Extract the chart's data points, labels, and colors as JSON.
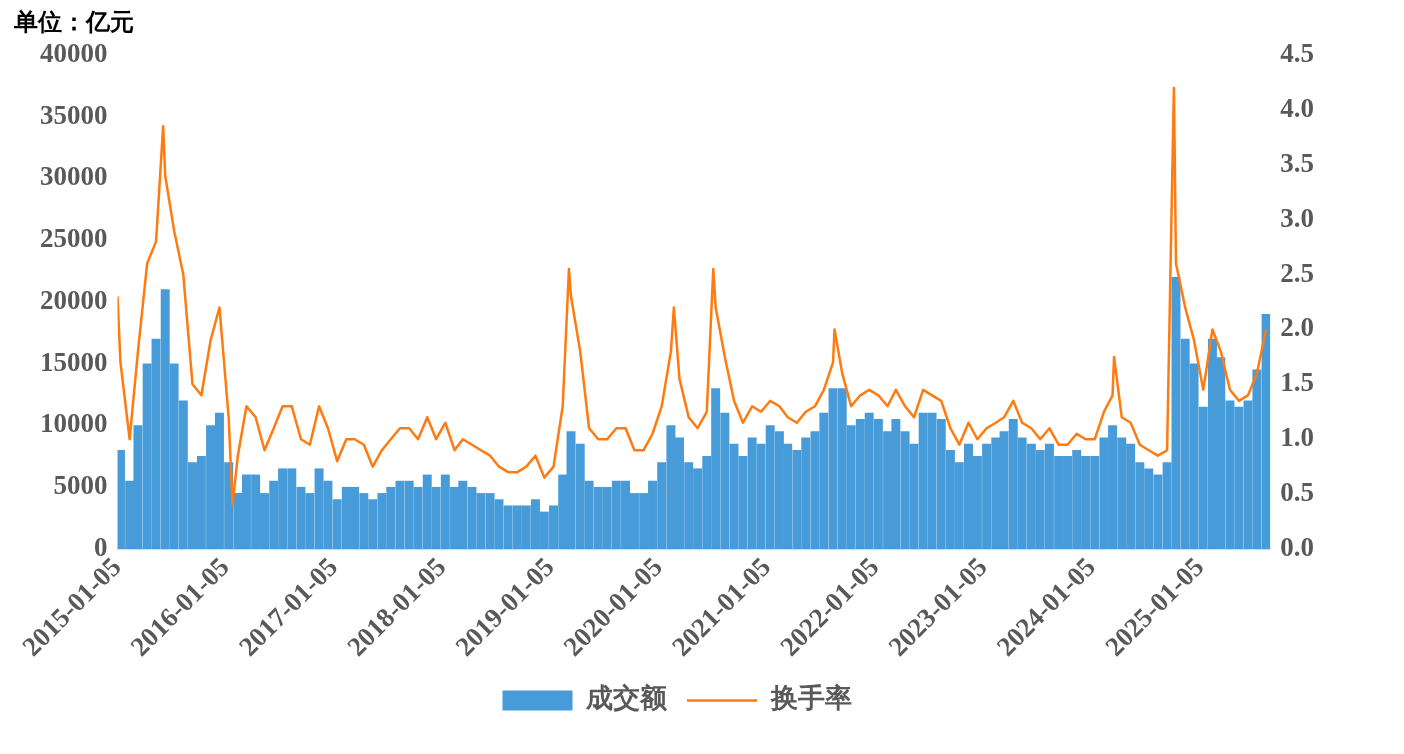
{
  "chart_data": {
    "type": "bar",
    "ylabel": "单位：亿元",
    "x": [
      "2015-01-15",
      "2015-02-15",
      "2015-03-15",
      "2015-04-15",
      "2015-05-15",
      "2015-06-15",
      "2015-07-15",
      "2015-08-15",
      "2015-09-15",
      "2015-10-15",
      "2015-11-15",
      "2015-12-15",
      "2016-01-15",
      "2016-02-15",
      "2016-03-15",
      "2016-04-15",
      "2016-05-15",
      "2016-06-15",
      "2016-07-15",
      "2016-08-15",
      "2016-09-15",
      "2016-10-15",
      "2016-11-15",
      "2016-12-15",
      "2017-01-15",
      "2017-02-15",
      "2017-03-15",
      "2017-04-15",
      "2017-05-15",
      "2017-06-15",
      "2017-07-15",
      "2017-08-15",
      "2017-09-15",
      "2017-10-15",
      "2017-11-15",
      "2017-12-15",
      "2018-01-15",
      "2018-02-15",
      "2018-03-15",
      "2018-04-15",
      "2018-05-15",
      "2018-06-15",
      "2018-07-15",
      "2018-08-15",
      "2018-09-15",
      "2018-10-15",
      "2018-11-15",
      "2018-12-15",
      "2019-01-15",
      "2019-02-15",
      "2019-03-15",
      "2019-04-15",
      "2019-05-15",
      "2019-06-15",
      "2019-07-15",
      "2019-08-15",
      "2019-09-15",
      "2019-10-15",
      "2019-11-15",
      "2019-12-15",
      "2020-01-15",
      "2020-02-15",
      "2020-03-15",
      "2020-04-15",
      "2020-05-15",
      "2020-06-15",
      "2020-07-15",
      "2020-08-15",
      "2020-09-15",
      "2020-10-15",
      "2020-11-15",
      "2020-12-15",
      "2021-01-15",
      "2021-02-15",
      "2021-03-15",
      "2021-04-15",
      "2021-05-15",
      "2021-06-15",
      "2021-07-15",
      "2021-08-15",
      "2021-09-15",
      "2021-10-15",
      "2021-11-15",
      "2021-12-15",
      "2022-01-15",
      "2022-02-15",
      "2022-03-15",
      "2022-04-15",
      "2022-05-15",
      "2022-06-15",
      "2022-07-15",
      "2022-08-15",
      "2022-09-15",
      "2022-10-15",
      "2022-11-15",
      "2022-12-15",
      "2023-01-15",
      "2023-02-15",
      "2023-03-15",
      "2023-04-15",
      "2023-05-15",
      "2023-06-15",
      "2023-07-15",
      "2023-08-15",
      "2023-09-15",
      "2023-10-15",
      "2023-11-15",
      "2023-12-15",
      "2024-01-15",
      "2024-02-15",
      "2024-03-15",
      "2024-04-15",
      "2024-05-15",
      "2024-06-15",
      "2024-07-15",
      "2024-08-15",
      "2024-09-15",
      "2024-10-15",
      "2024-11-15",
      "2024-12-15",
      "2025-01-15",
      "2025-02-15",
      "2025-03-15",
      "2025-04-15",
      "2025-05-15",
      "2025-06-15",
      "2025-07-15",
      "2025-08-15"
    ],
    "series": [
      {
        "name": "成交额",
        "color": "#469bd8",
        "values": [
          8000,
          5500,
          10000,
          15000,
          17000,
          21000,
          15000,
          12000,
          7000,
          7500,
          10000,
          11000,
          7000,
          4500,
          6000,
          6000,
          4500,
          5500,
          6500,
          6500,
          5000,
          4500,
          6500,
          5500,
          4000,
          5000,
          5000,
          4500,
          4000,
          4500,
          5000,
          5500,
          5500,
          5000,
          6000,
          5000,
          6000,
          5000,
          5500,
          5000,
          4500,
          4500,
          4000,
          3500,
          3500,
          3500,
          4000,
          3000,
          3500,
          6000,
          9500,
          8500,
          5500,
          5000,
          5000,
          5500,
          5500,
          4500,
          4500,
          5500,
          7000,
          10000,
          9000,
          7000,
          6500,
          7500,
          13000,
          11000,
          8500,
          7500,
          9000,
          8500,
          10000,
          9500,
          8500,
          8000,
          9000,
          9500,
          11000,
          13000,
          13000,
          10000,
          10500,
          11000,
          10500,
          9500,
          10500,
          9500,
          8500,
          11000,
          11000,
          10500,
          8000,
          7000,
          8500,
          7500,
          8500,
          9000,
          9500,
          10500,
          9000,
          8500,
          8000,
          8500,
          7500,
          7500,
          8000,
          7500,
          7500,
          9000,
          10000,
          9000,
          8500,
          7000,
          6500,
          6000,
          7000,
          22000,
          17000,
          15000,
          11500,
          17000,
          15500,
          12000,
          11500,
          12000,
          14500,
          19000
        ]
      },
      {
        "name": "换手率",
        "type": "line",
        "axis": "y2",
        "color": "#ff7a0f",
        "x": [
          "2015-01-05",
          "2015-01-15",
          "2015-02-15",
          "2015-03-15",
          "2015-04-15",
          "2015-05-15",
          "2015-06-08",
          "2015-06-15",
          "2015-07-15",
          "2015-08-15",
          "2015-09-15",
          "2015-10-15",
          "2015-11-15",
          "2015-12-15",
          "2016-01-15",
          "2016-01-28",
          "2016-02-15",
          "2016-03-15",
          "2016-04-15",
          "2016-05-15",
          "2016-06-15",
          "2016-07-15",
          "2016-08-15",
          "2016-09-15",
          "2016-10-15",
          "2016-11-15",
          "2016-12-15",
          "2017-01-15",
          "2017-02-15",
          "2017-03-15",
          "2017-04-15",
          "2017-05-15",
          "2017-06-15",
          "2017-07-15",
          "2017-08-15",
          "2017-09-15",
          "2017-10-15",
          "2017-11-15",
          "2017-12-15",
          "2018-01-15",
          "2018-02-15",
          "2018-03-15",
          "2018-04-15",
          "2018-05-15",
          "2018-06-15",
          "2018-07-15",
          "2018-08-15",
          "2018-09-15",
          "2018-10-15",
          "2018-11-15",
          "2018-12-15",
          "2019-01-15",
          "2019-02-15",
          "2019-03-08",
          "2019-03-15",
          "2019-04-15",
          "2019-05-15",
          "2019-06-15",
          "2019-07-15",
          "2019-08-15",
          "2019-09-15",
          "2019-10-15",
          "2019-11-15",
          "2019-12-15",
          "2020-01-15",
          "2020-02-15",
          "2020-02-25",
          "2020-03-15",
          "2020-04-15",
          "2020-05-15",
          "2020-06-15",
          "2020-07-07",
          "2020-07-15",
          "2020-08-15",
          "2020-09-15",
          "2020-10-15",
          "2020-11-15",
          "2020-12-15",
          "2021-01-15",
          "2021-02-15",
          "2021-03-15",
          "2021-04-15",
          "2021-05-15",
          "2021-06-15",
          "2021-07-15",
          "2021-08-15",
          "2021-08-20",
          "2021-09-15",
          "2021-10-15",
          "2021-11-15",
          "2021-12-15",
          "2022-01-15",
          "2022-02-15",
          "2022-03-15",
          "2022-04-15",
          "2022-05-15",
          "2022-06-15",
          "2022-07-15",
          "2022-08-15",
          "2022-09-15",
          "2022-10-15",
          "2022-11-15",
          "2022-12-15",
          "2023-01-15",
          "2023-02-15",
          "2023-03-15",
          "2023-04-15",
          "2023-05-15",
          "2023-06-15",
          "2023-07-15",
          "2023-08-15",
          "2023-09-15",
          "2023-10-15",
          "2023-11-15",
          "2023-12-15",
          "2024-01-15",
          "2024-02-15",
          "2024-03-15",
          "2024-03-20",
          "2024-04-15",
          "2024-05-15",
          "2024-06-15",
          "2024-07-15",
          "2024-08-15",
          "2024-09-15",
          "2024-10-08",
          "2024-10-15",
          "2024-11-15",
          "2024-12-15",
          "2025-01-15",
          "2025-02-15",
          "2025-03-15",
          "2025-04-15",
          "2025-05-15",
          "2025-06-15",
          "2025-07-15",
          "2025-08-15"
        ],
        "values": [
          2.3,
          1.7,
          1.0,
          1.8,
          2.6,
          2.8,
          3.85,
          3.4,
          2.9,
          2.5,
          1.5,
          1.4,
          1.9,
          2.2,
          1.2,
          0.4,
          0.85,
          1.3,
          1.2,
          0.9,
          1.1,
          1.3,
          1.3,
          1.0,
          0.95,
          1.3,
          1.1,
          0.8,
          1.0,
          1.0,
          0.95,
          0.75,
          0.9,
          1.0,
          1.1,
          1.1,
          1.0,
          1.2,
          1.0,
          1.15,
          0.9,
          1.0,
          0.95,
          0.9,
          0.85,
          0.75,
          0.7,
          0.7,
          0.75,
          0.85,
          0.65,
          0.75,
          1.3,
          2.55,
          2.3,
          1.8,
          1.1,
          1.0,
          1.0,
          1.1,
          1.1,
          0.9,
          0.9,
          1.05,
          1.3,
          1.8,
          2.2,
          1.55,
          1.2,
          1.1,
          1.25,
          2.55,
          2.2,
          1.75,
          1.35,
          1.15,
          1.3,
          1.25,
          1.35,
          1.3,
          1.2,
          1.15,
          1.25,
          1.3,
          1.45,
          1.7,
          2.0,
          1.6,
          1.3,
          1.4,
          1.45,
          1.4,
          1.3,
          1.45,
          1.3,
          1.2,
          1.45,
          1.4,
          1.35,
          1.1,
          0.95,
          1.15,
          1.0,
          1.1,
          1.15,
          1.2,
          1.35,
          1.15,
          1.1,
          1.0,
          1.1,
          0.95,
          0.95,
          1.05,
          1.0,
          1.0,
          1.25,
          1.4,
          1.75,
          1.2,
          1.15,
          0.95,
          0.9,
          0.85,
          0.9,
          4.2,
          2.6,
          2.2,
          1.9,
          1.45,
          2.0,
          1.8,
          1.45,
          1.35,
          1.4,
          1.6,
          2.0
        ]
      }
    ],
    "xlim": [
      "2015-01-05",
      "2025-08-29"
    ],
    "xticks": [
      "2015-01-05",
      "2016-01-05",
      "2017-01-05",
      "2018-01-05",
      "2019-01-05",
      "2020-01-05",
      "2021-01-05",
      "2022-01-05",
      "2023-01-05",
      "2024-01-05",
      "2025-01-05"
    ],
    "ylim": [
      0,
      40000
    ],
    "yticks": [
      0,
      5000,
      10000,
      15000,
      20000,
      25000,
      30000,
      35000,
      40000
    ],
    "y2lim": [
      0,
      4.5
    ],
    "y2ticks": [
      {
        "value": 0,
        "label": "0.0"
      },
      {
        "value": 0.5,
        "label": "0.5"
      },
      {
        "value": 1,
        "label": "1.0"
      },
      {
        "value": 1.5,
        "label": "1.5"
      },
      {
        "value": 2,
        "label": "2.0"
      },
      {
        "value": 2.5,
        "label": "2.5"
      },
      {
        "value": 3,
        "label": "3.0"
      },
      {
        "value": 3.5,
        "label": "3.5"
      },
      {
        "value": 4,
        "label": "4.0"
      },
      {
        "value": 4.5,
        "label": "4.5"
      }
    ],
    "grid": false,
    "legend": "bottom"
  }
}
